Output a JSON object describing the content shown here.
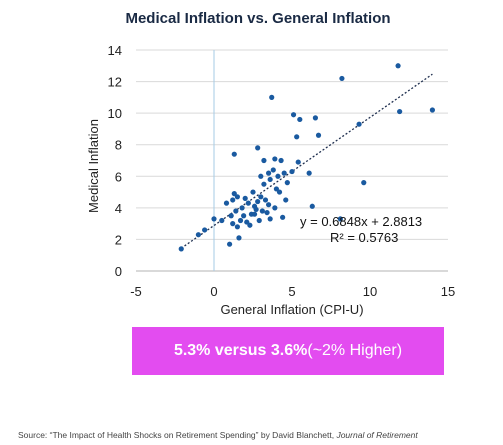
{
  "chart_data": {
    "type": "scatter",
    "title": "Medical Inflation vs. General Inflation",
    "xlabel": "General Inflation (CPI-U)",
    "ylabel": "Medical Inflation",
    "xlim": [
      -5,
      15
    ],
    "ylim": [
      0,
      14
    ],
    "xticks": [
      -5,
      0,
      5,
      10,
      15
    ],
    "yticks": [
      0,
      2,
      4,
      6,
      8,
      10,
      12,
      14
    ],
    "grid": "horizontal",
    "trendline": {
      "type": "linear",
      "slope": 0.6848,
      "intercept": 2.8813,
      "x_range": [
        -2.1,
        14.0
      ],
      "equation": "y = 0.6848x + 2.8813",
      "r_squared": "R² = 0.5763"
    },
    "point_color": "#1a5aa0",
    "points": [
      [
        -2.1,
        1.4
      ],
      [
        -1.0,
        2.3
      ],
      [
        -0.6,
        2.6
      ],
      [
        0.0,
        3.3
      ],
      [
        0.5,
        3.2
      ],
      [
        0.8,
        4.3
      ],
      [
        1.0,
        1.7
      ],
      [
        1.1,
        3.5
      ],
      [
        1.2,
        4.5
      ],
      [
        1.2,
        3.0
      ],
      [
        1.3,
        4.9
      ],
      [
        1.4,
        3.8
      ],
      [
        1.5,
        2.8
      ],
      [
        1.6,
        2.1
      ],
      [
        1.7,
        3.2
      ],
      [
        1.8,
        4.0
      ],
      [
        1.9,
        3.5
      ],
      [
        1.3,
        7.4
      ],
      [
        2.0,
        4.6
      ],
      [
        2.1,
        3.1
      ],
      [
        2.2,
        4.3
      ],
      [
        2.3,
        2.9
      ],
      [
        2.4,
        3.6
      ],
      [
        2.5,
        5.0
      ],
      [
        2.6,
        4.1
      ],
      [
        2.7,
        3.9
      ],
      [
        2.8,
        4.4
      ],
      [
        2.9,
        3.2
      ],
      [
        3.0,
        4.7
      ],
      [
        3.0,
        6.0
      ],
      [
        3.1,
        3.8
      ],
      [
        3.2,
        5.5
      ],
      [
        3.2,
        7.0
      ],
      [
        3.3,
        4.5
      ],
      [
        3.4,
        3.7
      ],
      [
        3.5,
        6.2
      ],
      [
        3.5,
        4.2
      ],
      [
        3.6,
        5.8
      ],
      [
        3.7,
        11.0
      ],
      [
        3.8,
        6.4
      ],
      [
        3.9,
        4.0
      ],
      [
        4.0,
        5.2
      ],
      [
        4.1,
        6.0
      ],
      [
        4.2,
        5.0
      ],
      [
        4.3,
        7.0
      ],
      [
        4.4,
        3.4
      ],
      [
        4.5,
        6.2
      ],
      [
        4.6,
        4.5
      ],
      [
        4.7,
        5.6
      ],
      [
        3.9,
        7.1
      ],
      [
        2.8,
        7.8
      ],
      [
        5.0,
        6.3
      ],
      [
        5.1,
        9.9
      ],
      [
        5.3,
        8.5
      ],
      [
        5.4,
        6.9
      ],
      [
        5.5,
        9.6
      ],
      [
        6.1,
        6.2
      ],
      [
        6.5,
        9.7
      ],
      [
        6.7,
        8.6
      ],
      [
        8.2,
        12.2
      ],
      [
        9.3,
        9.3
      ],
      [
        9.6,
        5.6
      ],
      [
        11.8,
        13.0
      ],
      [
        11.9,
        10.1
      ],
      [
        14.0,
        10.2
      ],
      [
        8.1,
        3.3
      ],
      [
        6.3,
        4.1
      ],
      [
        3.6,
        3.3
      ],
      [
        1.5,
        4.7
      ],
      [
        2.6,
        3.6
      ]
    ]
  },
  "callout": {
    "bold_text": "5.3% versus 3.6%",
    "rest_text": " (~2% Higher)"
  },
  "source": {
    "prefix": "Source: “The Impact of Health Shocks on Retirement Spending” by David Blanchett, ",
    "journal": "Journal of Retirement"
  }
}
